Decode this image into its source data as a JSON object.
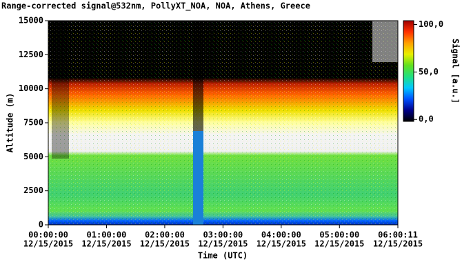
{
  "chart_data": {
    "type": "heatmap",
    "title": "Range-corrected signal@532nm, PollyXT_NOA, NOA, Athens, Greece",
    "xlabel": "Time (UTC)",
    "ylabel": "Altitude (m)",
    "xlim": [
      "2015-12-15T00:00:00",
      "2015-12-15T06:00:11"
    ],
    "xticks": [
      {
        "value": "2015-12-15T00:00:00",
        "label": [
          "00:00:00",
          "12/15/2015"
        ]
      },
      {
        "value": "2015-12-15T01:00:00",
        "label": [
          "01:00:00",
          "12/15/2015"
        ]
      },
      {
        "value": "2015-12-15T02:00:00",
        "label": [
          "02:00:00",
          "12/15/2015"
        ]
      },
      {
        "value": "2015-12-15T03:00:00",
        "label": [
          "03:00:00",
          "12/15/2015"
        ]
      },
      {
        "value": "2015-12-15T04:00:00",
        "label": [
          "04:00:00",
          "12/15/2015"
        ]
      },
      {
        "value": "2015-12-15T05:00:00",
        "label": [
          "05:00:00",
          "12/15/2015"
        ]
      },
      {
        "value": "2015-12-15T06:00:11",
        "label": [
          "06:00:11",
          "12/15/2015"
        ]
      }
    ],
    "ylim": [
      0,
      15000
    ],
    "yticks": [
      0,
      2500,
      5000,
      7500,
      10000,
      12500,
      15000
    ],
    "colorbar": {
      "label": "Signal [a.u.]",
      "lim": [
        -2,
        104
      ],
      "ticks": [
        {
          "value": 0,
          "label": "0,0"
        },
        {
          "value": 50,
          "label": "50,0"
        },
        {
          "value": 100,
          "label": "100,0"
        }
      ],
      "colors": [
        "#000000",
        "#00008b",
        "#0050ff",
        "#00c8ff",
        "#20e080",
        "#60e020",
        "#e8f000",
        "#ffa000",
        "#ff3000",
        "#a00000"
      ]
    }
  }
}
